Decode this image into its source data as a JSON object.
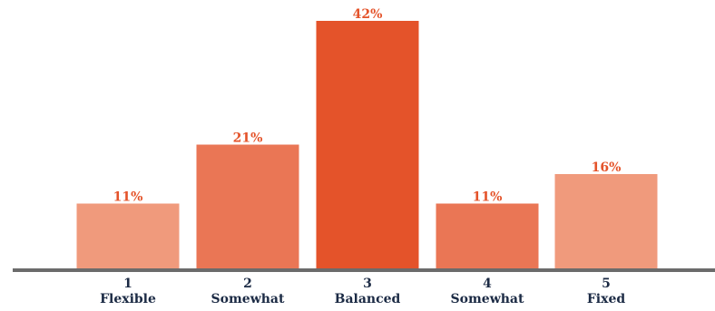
{
  "chart_data": {
    "type": "bar",
    "title": "",
    "xlabel": "",
    "ylabel": "",
    "ylim": [
      0,
      45
    ],
    "grid": false,
    "categories": [
      {
        "number": "1",
        "label": "Flexible"
      },
      {
        "number": "2",
        "label": "Somewhat"
      },
      {
        "number": "3",
        "label": "Balanced"
      },
      {
        "number": "4",
        "label": "Somewhat"
      },
      {
        "number": "5",
        "label": "Fixed"
      }
    ],
    "values": [
      11,
      21,
      42,
      11,
      16
    ],
    "value_labels": [
      "11%",
      "21%",
      "42%",
      "11%",
      "16%"
    ],
    "bar_colors": [
      "#f09a7c",
      "#ea7655",
      "#e4532a",
      "#ea7655",
      "#f09a7c"
    ],
    "label_color": "#e4532a",
    "tick_label_color": "#1b2a44",
    "baseline_color": "#6b6b6b"
  }
}
